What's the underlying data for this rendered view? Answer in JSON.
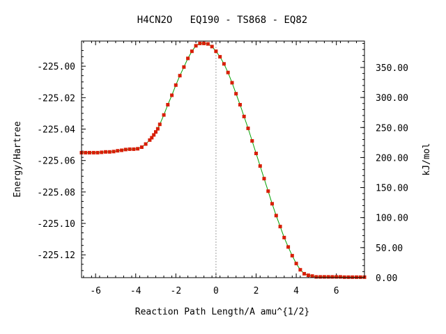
{
  "chart_data": {
    "type": "line",
    "title": "H4CN2O   EQ190 - TS868 - EQ82",
    "xlabel": "Reaction Path Length/A amu^{1/2}",
    "ylabel": "Energy/Hartree",
    "y2label": "kJ/mol",
    "xlim": [
      -6.7,
      7.4
    ],
    "ylim": [
      -225.1345,
      -224.984
    ],
    "y2lim": [
      0,
      394
    ],
    "x_ticks": [
      "-6",
      "-4",
      "-2",
      "0",
      "2",
      "4",
      "6"
    ],
    "x_tick_values": [
      -6,
      -4,
      -2,
      0,
      2,
      4,
      6
    ],
    "y_ticks": [
      "-225.00",
      "-225.02",
      "-225.04",
      "-225.06",
      "-225.08",
      "-225.10",
      "-225.12"
    ],
    "y_tick_values": [
      -225.0,
      -225.02,
      -225.04,
      -225.06,
      -225.08,
      -225.1,
      -225.12
    ],
    "y2_ticks": [
      "350.00",
      "300.00",
      "250.00",
      "200.00",
      "150.00",
      "100.00",
      "50.00",
      "0.00"
    ],
    "y2_tick_values": [
      350,
      300,
      250,
      200,
      150,
      100,
      50,
      0
    ],
    "ts_x": 0.0,
    "grid": false,
    "colors": {
      "line": "#00a000",
      "marker": "#d81e06",
      "ts_line": "#a0a0a0",
      "axis": "#000000"
    },
    "series": [
      {
        "x": [
          -6.7,
          -6.5,
          -6.3,
          -6.1,
          -5.9,
          -5.7,
          -5.5,
          -5.3,
          -5.1,
          -4.9,
          -4.7,
          -4.5,
          -4.3,
          -4.1,
          -3.9,
          -3.7,
          -3.5,
          -3.3,
          -3.2,
          -3.1,
          -3.0,
          -2.9,
          -2.8,
          -2.6,
          -2.4,
          -2.2,
          -2.0,
          -1.8,
          -1.6,
          -1.4,
          -1.2,
          -1.0,
          -0.8,
          -0.6,
          -0.4,
          -0.2,
          0.0,
          0.2,
          0.4,
          0.6,
          0.8,
          1.0,
          1.2,
          1.4,
          1.6,
          1.8,
          2.0,
          2.2,
          2.4,
          2.6,
          2.8,
          3.0,
          3.2,
          3.4,
          3.6,
          3.8,
          4.0,
          4.2,
          4.4,
          4.6,
          4.8,
          5.0,
          5.2,
          5.4,
          5.6,
          5.8,
          6.0,
          6.2,
          6.4,
          6.6,
          6.8,
          7.0,
          7.2,
          7.4
        ],
        "y": [
          -225.055,
          -225.055,
          -225.055,
          -225.055,
          -225.055,
          -225.0548,
          -225.0545,
          -225.0545,
          -225.0543,
          -225.0538,
          -225.0535,
          -225.053,
          -225.0528,
          -225.0528,
          -225.0525,
          -225.0515,
          -225.0495,
          -225.047,
          -225.0455,
          -225.0437,
          -225.0418,
          -225.0398,
          -225.037,
          -225.031,
          -225.0245,
          -225.0185,
          -225.012,
          -225.006,
          -225.0005,
          -224.995,
          -224.9905,
          -224.987,
          -224.9855,
          -224.9855,
          -224.9858,
          -224.9875,
          -224.9905,
          -224.994,
          -224.9985,
          -225.004,
          -225.0105,
          -225.0175,
          -225.0245,
          -225.032,
          -225.0395,
          -225.0475,
          -225.0555,
          -225.0635,
          -225.0715,
          -225.0795,
          -225.0875,
          -225.095,
          -225.102,
          -225.109,
          -225.115,
          -225.1205,
          -225.1255,
          -225.1295,
          -225.132,
          -225.133,
          -225.1335,
          -225.134,
          -225.134,
          -225.134,
          -225.134,
          -225.134,
          -225.134,
          -225.134,
          -225.1342,
          -225.1342,
          -225.1342,
          -225.1342,
          -225.1342,
          -225.1342
        ]
      }
    ]
  }
}
